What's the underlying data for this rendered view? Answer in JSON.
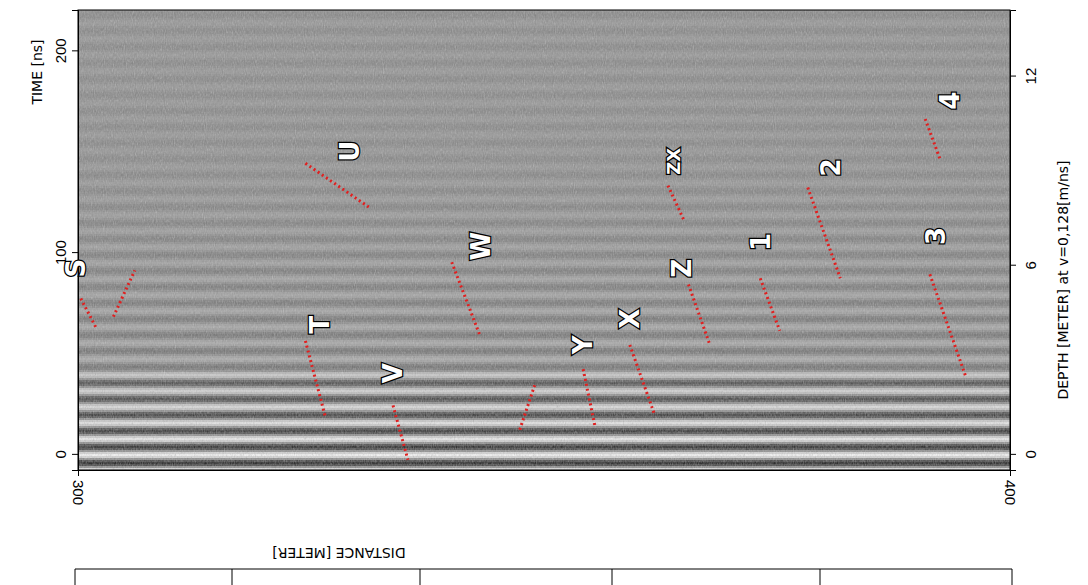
{
  "chart_data": {
    "type": "line",
    "x_label": "DISTANCE [METER]",
    "y_label": "TIME [ns]",
    "y2_label": "DEPTH [METER] at v=0,128[m/ns]",
    "xlim": [
      300,
      400
    ],
    "xticks": [
      300,
      400
    ],
    "ylim": [
      -8,
      220
    ],
    "yticks": [
      0,
      100,
      200
    ],
    "y2lim": [
      -0.512,
      14.08
    ],
    "y2ticks": [
      0,
      6,
      12
    ],
    "color": "#e02020",
    "line_style": "dotted",
    "annotations": [
      {
        "text": "S",
        "x": [
          300.3,
          302.0,
          null,
          303.8,
          306.1
        ],
        "y": [
          77,
          62,
          null,
          68,
          91
        ],
        "label_x": 299.8,
        "label_y": 92
      },
      {
        "text": "T",
        "x": [
          324.4,
          326.5
        ],
        "y": [
          56,
          19
        ],
        "label_x": 326.0,
        "label_y": 64
      },
      {
        "text": "U",
        "x": [
          324.4,
          331.3
        ],
        "y": [
          144,
          122
        ],
        "label_x": 329.2,
        "label_y": 150
      },
      {
        "text": "V",
        "x": [
          333.8,
          335.4
        ],
        "y": [
          24,
          -3
        ],
        "label_x": 333.8,
        "label_y": 40
      },
      {
        "text": "W",
        "x": [
          340.1,
          343.1
        ],
        "y": [
          95,
          59
        ],
        "label_x": 343.2,
        "label_y": 103
      },
      {
        "text": "Y",
        "x": [
          347.4,
          349.0,
          null,
          354.2,
          355.5
        ],
        "y": [
          12,
          34,
          null,
          42,
          13
        ],
        "label_x": 354.2,
        "label_y": 54
      },
      {
        "text": "X",
        "x": [
          359.2,
          361.9
        ],
        "y": [
          54,
          19
        ],
        "label_x": 359.2,
        "label_y": 67
      },
      {
        "text": "Z",
        "x": [
          365.5,
          367.8
        ],
        "y": [
          84,
          54
        ],
        "label_x": 364.8,
        "label_y": 92
      },
      {
        "text": "ZX",
        "x": [
          363.3,
          365.1
        ],
        "y": [
          133,
          115
        ],
        "label_x": 363.9,
        "label_y": 145
      },
      {
        "text": "1",
        "x": [
          373.2,
          375.3
        ],
        "y": [
          87,
          61
        ],
        "label_x": 373.3,
        "label_y": 105
      },
      {
        "text": "2",
        "x": [
          378.3,
          381.8
        ],
        "y": [
          132,
          87
        ],
        "label_x": 380.8,
        "label_y": 142
      },
      {
        "text": "3",
        "x": [
          391.4,
          395.2
        ],
        "y": [
          89,
          39
        ],
        "label_x": 392.0,
        "label_y": 108
      },
      {
        "text": "4",
        "x": [
          390.9,
          392.5
        ],
        "y": [
          166,
          146
        ],
        "label_x": 393.5,
        "label_y": 175
      }
    ]
  }
}
